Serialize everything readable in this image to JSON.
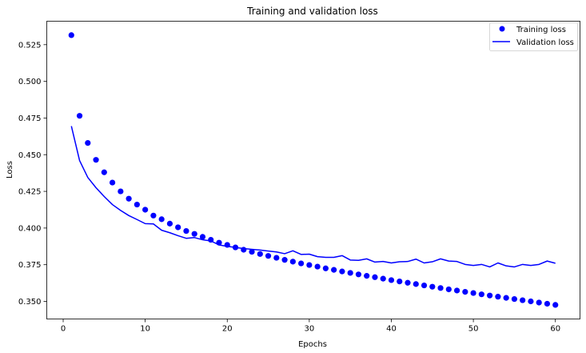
{
  "chart_data": {
    "type": "line",
    "title": "Training and validation loss",
    "xlabel": "Epochs",
    "ylabel": "Loss",
    "xlim": [
      -2,
      63
    ],
    "ylim": [
      0.338,
      0.541
    ],
    "xticks": [
      0,
      10,
      20,
      30,
      40,
      50,
      60
    ],
    "yticks": [
      0.35,
      0.375,
      0.4,
      0.425,
      0.45,
      0.475,
      0.5,
      0.525
    ],
    "ytick_labels": [
      "0.350",
      "0.375",
      "0.400",
      "0.425",
      "0.450",
      "0.475",
      "0.500",
      "0.525"
    ],
    "grid": false,
    "legend_position": "top-right",
    "series": [
      {
        "name": "Training loss",
        "style": "markers",
        "color": "#0000ff",
        "x": [
          1,
          2,
          3,
          4,
          5,
          6,
          7,
          8,
          9,
          10,
          11,
          12,
          13,
          14,
          15,
          16,
          17,
          18,
          19,
          20,
          21,
          22,
          23,
          24,
          25,
          26,
          27,
          28,
          29,
          30,
          31,
          32,
          33,
          34,
          35,
          36,
          37,
          38,
          39,
          40,
          41,
          42,
          43,
          44,
          45,
          46,
          47,
          48,
          49,
          50,
          51,
          52,
          53,
          54,
          55,
          56,
          57,
          58,
          59,
          60
        ],
        "values": [
          0.5315,
          0.4765,
          0.458,
          0.4465,
          0.438,
          0.431,
          0.425,
          0.42,
          0.416,
          0.4125,
          0.4085,
          0.406,
          0.403,
          0.4005,
          0.398,
          0.396,
          0.394,
          0.392,
          0.39,
          0.3885,
          0.3868,
          0.3852,
          0.3838,
          0.3823,
          0.381,
          0.3797,
          0.3783,
          0.3771,
          0.3759,
          0.3748,
          0.3737,
          0.3725,
          0.3715,
          0.3704,
          0.3694,
          0.3684,
          0.3674,
          0.3665,
          0.3655,
          0.3645,
          0.3636,
          0.3627,
          0.3618,
          0.3609,
          0.36,
          0.3591,
          0.3582,
          0.3574,
          0.3565,
          0.3557,
          0.3548,
          0.354,
          0.3532,
          0.3524,
          0.3516,
          0.3508,
          0.35,
          0.3492,
          0.3484,
          0.3476
        ]
      },
      {
        "name": "Validation loss",
        "style": "line",
        "color": "#0000ff",
        "x": [
          1,
          2,
          3,
          4,
          5,
          6,
          7,
          8,
          9,
          10,
          11,
          12,
          13,
          14,
          15,
          16,
          17,
          18,
          19,
          20,
          21,
          22,
          23,
          24,
          25,
          26,
          27,
          28,
          29,
          30,
          31,
          32,
          33,
          34,
          35,
          36,
          37,
          38,
          39,
          40,
          41,
          42,
          43,
          44,
          45,
          46,
          47,
          48,
          49,
          50,
          51,
          52,
          53,
          54,
          55,
          56,
          57,
          58,
          59,
          60
        ],
        "values": [
          0.4695,
          0.446,
          0.4345,
          0.4275,
          0.4215,
          0.416,
          0.412,
          0.4085,
          0.4058,
          0.403,
          0.4028,
          0.3985,
          0.3968,
          0.3948,
          0.393,
          0.3935,
          0.392,
          0.3912,
          0.3885,
          0.3875,
          0.3868,
          0.386,
          0.3855,
          0.385,
          0.3843,
          0.3837,
          0.3825,
          0.3845,
          0.382,
          0.3822,
          0.3805,
          0.38,
          0.38,
          0.3812,
          0.3782,
          0.378,
          0.379,
          0.3768,
          0.3772,
          0.3762,
          0.377,
          0.3772,
          0.3788,
          0.3762,
          0.377,
          0.379,
          0.3775,
          0.3772,
          0.3752,
          0.3745,
          0.3752,
          0.3735,
          0.3762,
          0.3742,
          0.3735,
          0.3752,
          0.3745,
          0.3752,
          0.3775,
          0.376
        ]
      }
    ]
  }
}
